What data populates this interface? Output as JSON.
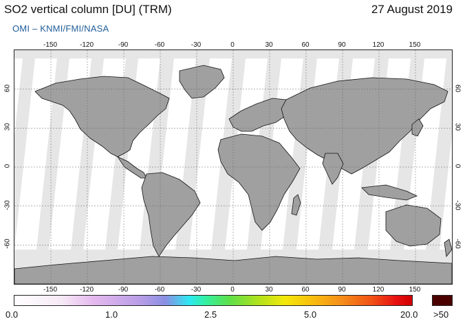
{
  "header": {
    "title": "SO2 vertical column [DU] (TRM)",
    "date": "27 August 2019",
    "credit": "OMI  –  KNMI/FMI/NASA"
  },
  "map": {
    "lon_ticks": [
      "-150",
      "-120",
      "-90",
      "-60",
      "-30",
      "0",
      "30",
      "60",
      "90",
      "120",
      "150"
    ],
    "lat_ticks": [
      "60",
      "30",
      "0",
      "-30",
      "-60"
    ],
    "lon_range": [
      -180,
      180
    ],
    "lat_range": [
      -90,
      90
    ],
    "grid": true,
    "colors": {
      "no_data": "#e6e6e6",
      "swath": "#ffffff",
      "land_overlay": "#a0a0a0",
      "coastline": "#111111"
    }
  },
  "colorbar": {
    "labels": [
      "0.0",
      "1.0",
      "2.5",
      "5.0",
      "20.0"
    ],
    "overflow_label": ">50",
    "overflow_color": "#4b0000"
  }
}
